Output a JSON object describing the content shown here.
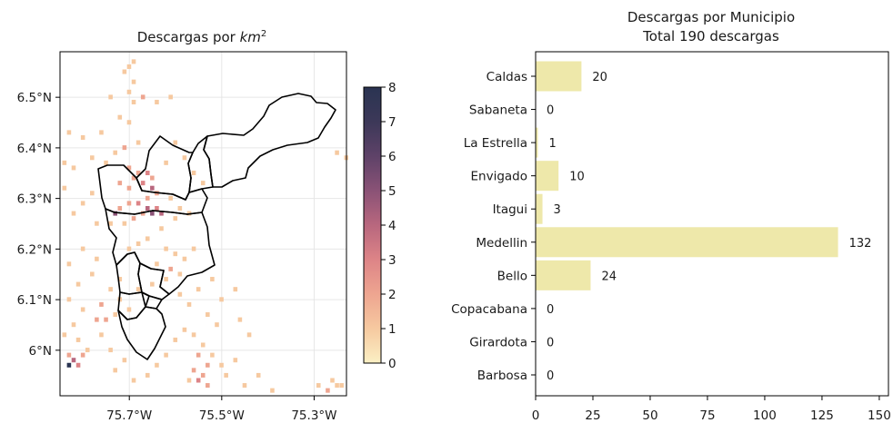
{
  "chart_data": [
    {
      "type": "heatmap",
      "title_main": "Descargas por ",
      "title_unit": "km",
      "title_exp": "2",
      "xticks": [
        "75.7°W",
        "75.5°W",
        "75.3°W"
      ],
      "xtick_values": [
        -75.7,
        -75.5,
        -75.3
      ],
      "yticks": [
        "6.5°N",
        "6.4°N",
        "6.3°N",
        "6.2°N",
        "6.1°N",
        "6°N"
      ],
      "ytick_values": [
        6.5,
        6.4,
        6.3,
        6.2,
        6.1,
        6.0
      ],
      "xlim": [
        -75.85,
        -75.23
      ],
      "ylim": [
        5.91,
        6.59
      ],
      "colorbar": {
        "ticks": [
          "0",
          "1",
          "2",
          "3",
          "4",
          "5",
          "6",
          "7",
          "8"
        ],
        "min": 0,
        "max": 8,
        "colors": [
          "#fbf0c4",
          "#f6c9a0",
          "#eea590",
          "#dd8487",
          "#b8677e",
          "#8a5276",
          "#5e4268",
          "#3c3858",
          "#2a3452"
        ]
      },
      "grid": true,
      "cells": [
        [
          -75.69,
          6.57,
          1
        ],
        [
          -75.7,
          6.56,
          1
        ],
        [
          -75.71,
          6.55,
          1
        ],
        [
          -75.69,
          6.53,
          1
        ],
        [
          -75.7,
          6.51,
          1
        ],
        [
          -75.67,
          6.5,
          2
        ],
        [
          -75.69,
          6.49,
          1
        ],
        [
          -75.74,
          6.5,
          1
        ],
        [
          -75.64,
          6.49,
          1
        ],
        [
          -75.61,
          6.5,
          1
        ],
        [
          -75.72,
          6.46,
          1
        ],
        [
          -75.7,
          6.45,
          1
        ],
        [
          -75.76,
          6.43,
          1
        ],
        [
          -75.83,
          6.43,
          1
        ],
        [
          -75.8,
          6.42,
          1
        ],
        [
          -75.68,
          6.41,
          1
        ],
        [
          -75.71,
          6.4,
          2
        ],
        [
          -75.73,
          6.39,
          1
        ],
        [
          -75.78,
          6.38,
          1
        ],
        [
          -75.84,
          6.37,
          1
        ],
        [
          -75.82,
          6.36,
          1
        ],
        [
          -75.75,
          6.37,
          1
        ],
        [
          -75.7,
          6.36,
          2
        ],
        [
          -75.68,
          6.35,
          2
        ],
        [
          -75.66,
          6.35,
          3
        ],
        [
          -75.65,
          6.34,
          2
        ],
        [
          -75.69,
          6.34,
          2
        ],
        [
          -75.72,
          6.33,
          2
        ],
        [
          -75.7,
          6.32,
          2
        ],
        [
          -75.67,
          6.33,
          3
        ],
        [
          -75.65,
          6.32,
          4
        ],
        [
          -75.64,
          6.31,
          2
        ],
        [
          -75.66,
          6.3,
          2
        ],
        [
          -75.68,
          6.29,
          3
        ],
        [
          -75.7,
          6.29,
          2
        ],
        [
          -75.72,
          6.28,
          2
        ],
        [
          -75.66,
          6.28,
          4
        ],
        [
          -75.65,
          6.27,
          5
        ],
        [
          -75.63,
          6.27,
          4
        ],
        [
          -75.64,
          6.28,
          3
        ],
        [
          -75.67,
          6.27,
          2
        ],
        [
          -75.69,
          6.26,
          2
        ],
        [
          -75.71,
          6.25,
          1
        ],
        [
          -75.73,
          6.27,
          5
        ],
        [
          -75.74,
          6.25,
          1
        ],
        [
          -75.78,
          6.31,
          1
        ],
        [
          -75.8,
          6.29,
          1
        ],
        [
          -75.82,
          6.27,
          1
        ],
        [
          -75.77,
          6.25,
          1
        ],
        [
          -75.84,
          6.32,
          1
        ],
        [
          -75.61,
          6.3,
          1
        ],
        [
          -75.59,
          6.28,
          1
        ],
        [
          -75.57,
          6.27,
          1
        ],
        [
          -75.6,
          6.26,
          1
        ],
        [
          -75.63,
          6.24,
          1
        ],
        [
          -75.66,
          6.22,
          1
        ],
        [
          -75.68,
          6.21,
          1
        ],
        [
          -75.7,
          6.2,
          1
        ],
        [
          -75.62,
          6.2,
          1
        ],
        [
          -75.6,
          6.19,
          1
        ],
        [
          -75.56,
          6.2,
          1
        ],
        [
          -75.58,
          6.18,
          1
        ],
        [
          -75.64,
          6.17,
          1
        ],
        [
          -75.61,
          6.16,
          2
        ],
        [
          -75.59,
          6.15,
          1
        ],
        [
          -75.62,
          6.14,
          1
        ],
        [
          -75.65,
          6.13,
          1
        ],
        [
          -75.68,
          6.12,
          1
        ],
        [
          -75.72,
          6.14,
          1
        ],
        [
          -75.74,
          6.12,
          1
        ],
        [
          -75.78,
          6.15,
          1
        ],
        [
          -75.81,
          6.13,
          1
        ],
        [
          -75.83,
          6.17,
          1
        ],
        [
          -75.8,
          6.2,
          1
        ],
        [
          -75.77,
          6.18,
          1
        ],
        [
          -75.83,
          6.1,
          1
        ],
        [
          -75.8,
          6.08,
          1
        ],
        [
          -75.77,
          6.06,
          2
        ],
        [
          -75.75,
          6.06,
          2
        ],
        [
          -75.73,
          6.07,
          1
        ],
        [
          -75.82,
          6.05,
          1
        ],
        [
          -75.84,
          6.03,
          1
        ],
        [
          -75.81,
          6.02,
          1
        ],
        [
          -75.79,
          6.0,
          1
        ],
        [
          -75.83,
          5.99,
          2
        ],
        [
          -75.82,
          5.98,
          4
        ],
        [
          -75.83,
          5.97,
          8
        ],
        [
          -75.81,
          5.97,
          3
        ],
        [
          -75.8,
          5.99,
          2
        ],
        [
          -75.76,
          6.03,
          1
        ],
        [
          -75.74,
          6.0,
          1
        ],
        [
          -75.71,
          5.98,
          1
        ],
        [
          -75.73,
          5.96,
          1
        ],
        [
          -75.69,
          5.94,
          1
        ],
        [
          -75.66,
          5.95,
          1
        ],
        [
          -75.64,
          5.97,
          1
        ],
        [
          -75.62,
          5.99,
          1
        ],
        [
          -75.6,
          6.02,
          1
        ],
        [
          -75.58,
          6.04,
          1
        ],
        [
          -75.56,
          6.03,
          1
        ],
        [
          -75.54,
          6.01,
          1
        ],
        [
          -75.55,
          5.99,
          2
        ],
        [
          -75.53,
          5.97,
          2
        ],
        [
          -75.52,
          5.99,
          1
        ],
        [
          -75.5,
          5.97,
          1
        ],
        [
          -75.56,
          5.96,
          2
        ],
        [
          -75.54,
          5.95,
          2
        ],
        [
          -75.55,
          5.94,
          3
        ],
        [
          -75.53,
          5.93,
          2
        ],
        [
          -75.57,
          5.94,
          1
        ],
        [
          -75.49,
          5.95,
          1
        ],
        [
          -75.47,
          5.98,
          1
        ],
        [
          -75.45,
          5.93,
          1
        ],
        [
          -75.42,
          5.95,
          1
        ],
        [
          -75.39,
          5.92,
          1
        ],
        [
          -75.59,
          6.11,
          1
        ],
        [
          -75.57,
          6.09,
          1
        ],
        [
          -75.55,
          6.12,
          1
        ],
        [
          -75.52,
          6.14,
          1
        ],
        [
          -75.5,
          6.1,
          1
        ],
        [
          -75.47,
          6.12,
          1
        ],
        [
          -75.53,
          6.07,
          1
        ],
        [
          -75.51,
          6.05,
          1
        ],
        [
          -75.46,
          6.06,
          1
        ],
        [
          -75.44,
          6.03,
          1
        ],
        [
          -75.58,
          6.38,
          1
        ],
        [
          -75.56,
          6.35,
          1
        ],
        [
          -75.54,
          6.33,
          1
        ],
        [
          -75.62,
          6.37,
          1
        ],
        [
          -75.6,
          6.41,
          1
        ],
        [
          -75.25,
          5.93,
          1
        ],
        [
          -75.27,
          5.92,
          2
        ],
        [
          -75.26,
          5.94,
          1
        ],
        [
          -75.24,
          5.93,
          1
        ],
        [
          -75.29,
          5.93,
          1
        ],
        [
          -75.23,
          6.38,
          1
        ],
        [
          -75.25,
          6.39,
          1
        ],
        [
          -75.72,
          6.1,
          1
        ],
        [
          -75.7,
          6.08,
          1
        ],
        [
          -75.76,
          6.09,
          2
        ]
      ]
    },
    {
      "type": "bar",
      "orientation": "horizontal",
      "title_line1": "Descargas por Municipio",
      "title_line2": "Total 190 descargas",
      "categories": [
        "Caldas",
        "Sabaneta",
        "La Estrella",
        "Envigado",
        "Itagui",
        "Medellin",
        "Bello",
        "Copacabana",
        "Girardota",
        "Barbosa"
      ],
      "values": [
        20,
        0,
        1,
        10,
        3,
        132,
        24,
        0,
        0,
        0
      ],
      "value_labels": [
        "20",
        "0",
        "1",
        "10",
        "3",
        "132",
        "24",
        "0",
        "0",
        "0"
      ],
      "xticks": [
        "0",
        "25",
        "50",
        "75",
        "100",
        "125",
        "150"
      ],
      "xtick_values": [
        0,
        25,
        50,
        75,
        100,
        125,
        150
      ],
      "xlim": [
        0,
        154
      ],
      "bar_color": "#eee8aa",
      "grid": false
    }
  ]
}
